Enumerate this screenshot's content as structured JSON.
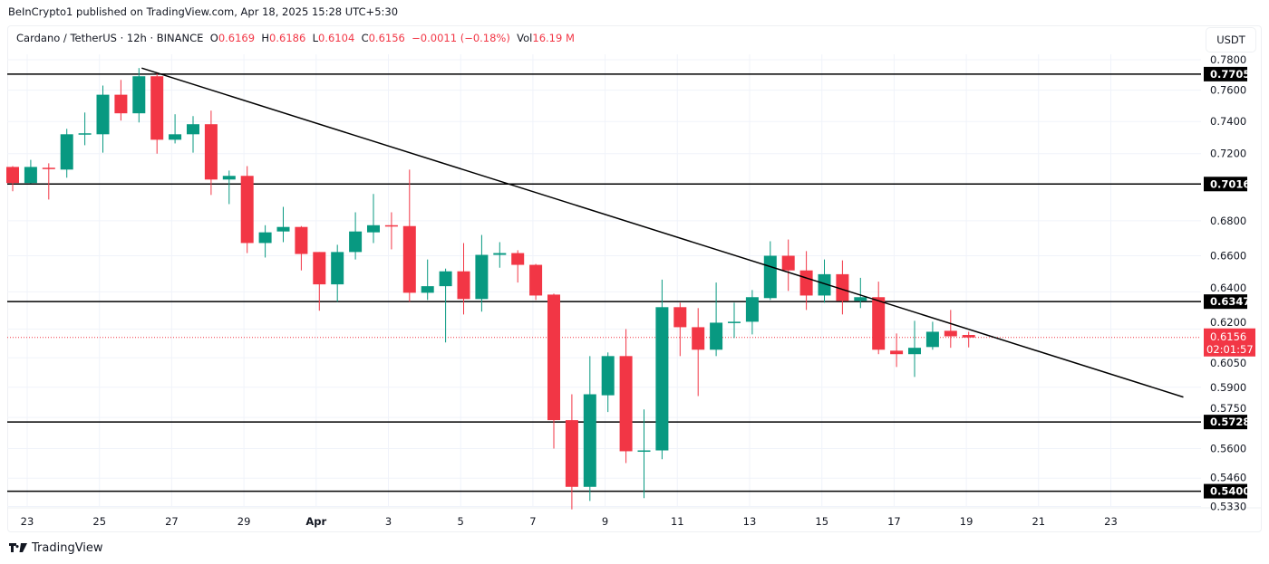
{
  "publication": "BeInCrypto1 published on TradingView.com, Apr 18, 2025 15:28 UTC+5:30",
  "legend": {
    "symbol": "Cardano / TetherUS · 12h · BINANCE",
    "open_label": "O",
    "open": "0.6169",
    "high_label": "H",
    "high": "0.6186",
    "low_label": "L",
    "low": "0.6104",
    "close_label": "C",
    "close": "0.6156",
    "change": "−0.0011 (−0.18%)",
    "vol_label": "Vol",
    "vol": "16.19 M"
  },
  "currency_button": "USDT",
  "footer": {
    "brand": "TradingView",
    "icon": "tradingview-logo-icon"
  },
  "colors": {
    "up": "#089981",
    "down": "#f23645",
    "level": "#000000",
    "grid": "#f0f3fa"
  },
  "chart_data": {
    "type": "candlestick",
    "interval": "12h",
    "price_scale": "log",
    "ylim": [
      0.533,
      0.78
    ],
    "grid": true,
    "y_ticks": [
      "0.7800",
      "0.7600",
      "0.7400",
      "0.7200",
      "0.6800",
      "0.6600",
      "0.6400",
      "0.6200",
      "0.6050",
      "0.5900",
      "0.5750",
      "0.5600",
      "0.5460",
      "0.5330"
    ],
    "x_ticks": [
      "23",
      "25",
      "27",
      "29",
      "Apr",
      "3",
      "5",
      "7",
      "9",
      "11",
      "13",
      "15",
      "17",
      "19",
      "21",
      "23"
    ],
    "candles": [
      [
        0.7119,
        0.7124,
        0.6973,
        0.7022
      ],
      [
        0.7022,
        0.7162,
        0.702,
        0.7119
      ],
      [
        0.7114,
        0.7141,
        0.6924,
        0.7108
      ],
      [
        0.7103,
        0.7354,
        0.7054,
        0.732
      ],
      [
        0.732,
        0.7457,
        0.7252,
        0.7326
      ],
      [
        0.732,
        0.763,
        0.7206,
        0.7571
      ],
      [
        0.7571,
        0.7667,
        0.7406,
        0.7452
      ],
      [
        0.7452,
        0.7745,
        0.7394,
        0.7691
      ],
      [
        0.7691,
        0.7715,
        0.72,
        0.7286
      ],
      [
        0.7286,
        0.7446,
        0.7263,
        0.732
      ],
      [
        0.732,
        0.7434,
        0.7206,
        0.7383
      ],
      [
        0.7383,
        0.7469,
        0.6951,
        0.7043
      ],
      [
        0.7043,
        0.7097,
        0.6897,
        0.7065
      ],
      [
        0.7065,
        0.7124,
        0.6615,
        0.6672
      ],
      [
        0.6672,
        0.6774,
        0.659,
        0.6733
      ],
      [
        0.6738,
        0.6881,
        0.6677,
        0.6764
      ],
      [
        0.6764,
        0.6769,
        0.6518,
        0.661
      ],
      [
        0.6621,
        0.6621,
        0.6298,
        0.6441
      ],
      [
        0.6441,
        0.6662,
        0.6346,
        0.6621
      ],
      [
        0.6621,
        0.6849,
        0.6579,
        0.6738
      ],
      [
        0.6733,
        0.6957,
        0.6672,
        0.6774
      ],
      [
        0.6774,
        0.6849,
        0.6636,
        0.6769
      ],
      [
        0.6769,
        0.7103,
        0.6346,
        0.6395
      ],
      [
        0.6395,
        0.6579,
        0.6356,
        0.6431
      ],
      [
        0.6431,
        0.6528,
        0.613,
        0.6513
      ],
      [
        0.6513,
        0.6672,
        0.6278,
        0.6361
      ],
      [
        0.6361,
        0.6718,
        0.6293,
        0.6605
      ],
      [
        0.6605,
        0.6677,
        0.6533,
        0.6615
      ],
      [
        0.6615,
        0.6631,
        0.6451,
        0.6549
      ],
      [
        0.6549,
        0.6554,
        0.6356,
        0.638
      ],
      [
        0.6385,
        0.639,
        0.56,
        0.5737
      ],
      [
        0.5737,
        0.5865,
        0.5317,
        0.542
      ],
      [
        0.542,
        0.6059,
        0.5355,
        0.5865
      ],
      [
        0.586,
        0.6078,
        0.5777,
        0.6059
      ],
      [
        0.6059,
        0.62,
        0.5531,
        0.5587
      ],
      [
        0.5587,
        0.579,
        0.5368,
        0.5591
      ],
      [
        0.5591,
        0.6467,
        0.5549,
        0.6317
      ],
      [
        0.6317,
        0.6341,
        0.6059,
        0.621
      ],
      [
        0.621,
        0.6312,
        0.5856,
        0.6092
      ],
      [
        0.6092,
        0.6451,
        0.6059,
        0.6234
      ],
      [
        0.6234,
        0.6341,
        0.6153,
        0.6239
      ],
      [
        0.6239,
        0.641,
        0.6172,
        0.6371
      ],
      [
        0.6366,
        0.6682,
        0.6356,
        0.66
      ],
      [
        0.66,
        0.6692,
        0.6405,
        0.6518
      ],
      [
        0.6518,
        0.6626,
        0.6302,
        0.638
      ],
      [
        0.638,
        0.6579,
        0.6341,
        0.6497
      ],
      [
        0.6497,
        0.6574,
        0.6278,
        0.6351
      ],
      [
        0.6351,
        0.6477,
        0.6312,
        0.6371
      ],
      [
        0.6371,
        0.6456,
        0.6069,
        0.6092
      ],
      [
        0.6087,
        0.6177,
        0.6003,
        0.6069
      ],
      [
        0.6069,
        0.6244,
        0.5952,
        0.6102
      ],
      [
        0.6106,
        0.6239,
        0.6092,
        0.6186
      ],
      [
        0.6191,
        0.6302,
        0.6102,
        0.6162
      ],
      [
        0.6169,
        0.6186,
        0.6104,
        0.6156
      ]
    ],
    "levels": [
      "0.7705",
      "0.7016",
      "0.6347",
      "0.5728",
      "0.5400"
    ],
    "trendline": {
      "start": {
        "candle": 7,
        "price": 0.7745
      },
      "end": {
        "candle": 64.9,
        "price": 0.5851
      }
    },
    "last_price": "0.6156",
    "countdown": "02:01:57"
  }
}
